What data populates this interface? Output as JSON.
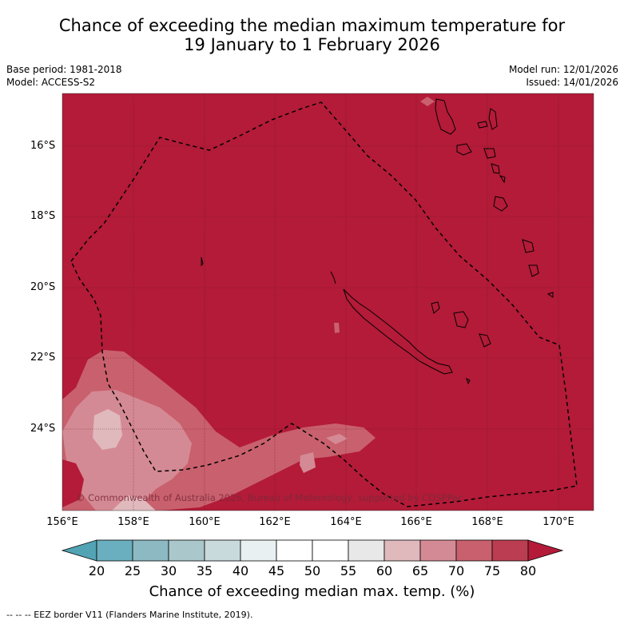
{
  "title_line1": "Chance of exceeding the median maximum temperature for",
  "title_line2": "19 January to 1 February 2026",
  "base_period": "Base period: 1981-2018",
  "model": "Model: ACCESS-S2",
  "model_run": "Model run: 12/01/2026",
  "issued": "Issued: 14/01/2026",
  "copyright": "© Commonwealth of Australia 2026, Bureau of Meteorology, supported by COSPPac",
  "lat_labels": [
    "16°S",
    "18°S",
    "20°S",
    "22°S",
    "24°S"
  ],
  "lon_labels": [
    "156°E",
    "158°E",
    "160°E",
    "162°E",
    "164°E",
    "166°E",
    "168°E",
    "170°E"
  ],
  "colorbar": {
    "ticks": [
      "20",
      "25",
      "30",
      "35",
      "40",
      "45",
      "50",
      "55",
      "60",
      "65",
      "70",
      "75",
      "80"
    ],
    "colors": [
      "#52a3b3",
      "#6aafbf",
      "#8db9c3",
      "#aac8cc",
      "#c9dadd",
      "#e8f0f1",
      "#ffffff",
      "#ffffff",
      "#e8e8e8",
      "#e0b9bd",
      "#d48a94",
      "#c9606d",
      "#bb3d51",
      "#b31b38"
    ],
    "label": "Chance of exceeding median max. temp. (%)"
  },
  "legend_footer": "-- -- -- EEZ border V11 (Flanders Marine Institute, 2019).",
  "colors": {
    "high": "#b31b38",
    "mid": "#c9606d",
    "light": "#d48a94",
    "pale": "#e0b9bd"
  }
}
